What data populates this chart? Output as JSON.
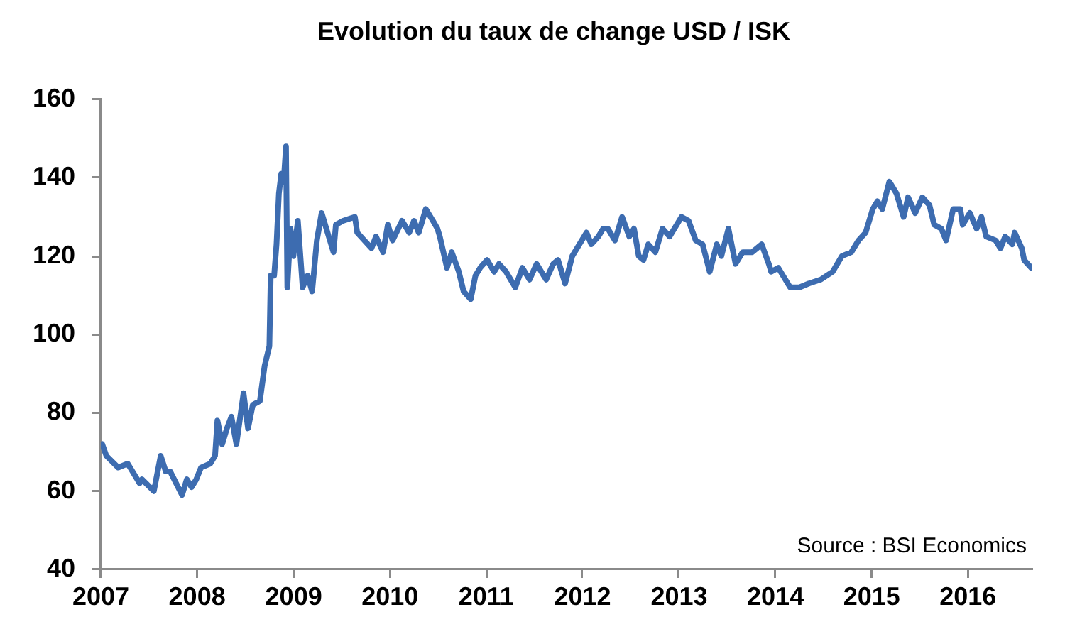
{
  "chart_data": {
    "type": "line",
    "title": "Evolution du taux de change USD / ISK",
    "annotations": [
      "Source : BSI Economics"
    ],
    "x": [
      "2007-01-06",
      "2007-01-22",
      "2007-03-08",
      "2007-04-13",
      "2007-05-28",
      "2007-06-06",
      "2007-07-21",
      "2007-08-16",
      "2007-09-04",
      "2007-09-21",
      "2007-11-05",
      "2007-11-23",
      "2007-12-11",
      "2007-12-29",
      "2008-01-16",
      "2008-02-20",
      "2008-03-09",
      "2008-03-18",
      "2008-04-05",
      "2008-04-23",
      "2008-05-10",
      "2008-05-29",
      "2008-06-25",
      "2008-07-12",
      "2008-07-30",
      "2008-08-26",
      "2008-09-13",
      "2008-10-01",
      "2008-10-06",
      "2008-10-19",
      "2008-10-28",
      "2008-11-06",
      "2008-11-15",
      "2008-11-24",
      "2008-12-03",
      "2008-12-08",
      "2008-12-20",
      "2008-12-31",
      "2009-01-17",
      "2009-02-04",
      "2009-02-23",
      "2009-03-12",
      "2009-03-30",
      "2009-04-17",
      "2009-05-05",
      "2009-06-01",
      "2009-06-10",
      "2009-07-07",
      "2009-08-21",
      "2009-08-30",
      "2009-09-26",
      "2009-10-23",
      "2009-11-09",
      "2009-12-06",
      "2009-12-24",
      "2010-01-11",
      "2010-02-16",
      "2010-03-15",
      "2010-04-02",
      "2010-04-20",
      "2010-05-17",
      "2010-06-13",
      "2010-06-30",
      "2010-07-09",
      "2010-08-05",
      "2010-08-23",
      "2010-09-19",
      "2010-10-07",
      "2010-11-03",
      "2010-11-21",
      "2010-12-09",
      "2011-01-04",
      "2011-01-31",
      "2011-02-18",
      "2011-03-17",
      "2011-04-21",
      "2011-05-18",
      "2011-06-14",
      "2011-07-11",
      "2011-08-16",
      "2011-09-12",
      "2011-09-30",
      "2011-10-27",
      "2011-11-23",
      "2011-12-20",
      "2012-01-16",
      "2012-02-03",
      "2012-03-01",
      "2012-03-19",
      "2012-04-06",
      "2012-05-03",
      "2012-05-30",
      "2012-06-26",
      "2012-07-14",
      "2012-08-01",
      "2012-08-19",
      "2012-09-06",
      "2012-10-03",
      "2012-10-30",
      "2012-11-26",
      "2013-01-10",
      "2013-02-06",
      "2013-03-05",
      "2013-03-31",
      "2013-04-27",
      "2013-05-24",
      "2013-06-10",
      "2013-07-07",
      "2013-08-03",
      "2013-08-30",
      "2013-10-05",
      "2013-11-10",
      "2013-12-07",
      "2013-12-16",
      "2014-01-12",
      "2014-02-26",
      "2014-04-02",
      "2014-05-08",
      "2014-06-22",
      "2014-08-06",
      "2014-09-10",
      "2014-10-16",
      "2014-11-12",
      "2014-12-09",
      "2015-01-05",
      "2015-01-23",
      "2015-02-10",
      "2015-03-09",
      "2015-04-05",
      "2015-05-02",
      "2015-05-19",
      "2015-06-15",
      "2015-07-12",
      "2015-08-08",
      "2015-08-26",
      "2015-09-22",
      "2015-10-10",
      "2015-11-06",
      "2015-12-03",
      "2015-12-12",
      "2016-01-08",
      "2016-02-03",
      "2016-02-21",
      "2016-03-10",
      "2016-04-15",
      "2016-05-03",
      "2016-05-21",
      "2016-06-17",
      "2016-06-26",
      "2016-07-23",
      "2016-08-01",
      "2016-08-28"
    ],
    "series": [
      {
        "color": "#3d6cb0",
        "values": [
          72,
          69,
          66,
          67,
          62,
          63,
          60,
          69,
          65,
          65,
          59,
          63,
          61,
          63,
          66,
          67,
          69,
          78,
          72,
          76,
          79,
          72,
          85,
          76,
          82,
          83,
          92,
          97,
          115,
          115,
          123,
          136,
          141,
          139,
          148,
          112,
          127,
          120,
          129,
          112,
          115,
          111,
          124,
          131,
          127,
          121,
          128,
          129,
          130,
          126,
          124,
          122,
          125,
          121,
          128,
          124,
          129,
          126,
          129,
          126,
          132,
          129,
          127,
          125,
          117,
          121,
          116,
          111,
          109,
          115,
          117,
          119,
          116,
          118,
          116,
          112,
          117,
          114,
          118,
          114,
          118,
          119,
          113,
          120,
          123,
          126,
          123,
          125,
          127,
          127,
          124,
          130,
          125,
          127,
          120,
          119,
          123,
          121,
          127,
          125,
          130,
          129,
          124,
          123,
          116,
          123,
          120,
          127,
          118,
          121,
          121,
          123,
          118,
          116,
          117,
          112,
          112,
          113,
          114,
          116,
          120,
          121,
          124,
          126,
          132,
          134,
          132,
          139,
          136,
          130,
          135,
          131,
          135,
          133,
          128,
          127,
          124,
          132,
          132,
          128,
          131,
          127,
          130,
          125,
          124,
          122,
          125,
          123,
          126,
          122,
          119,
          117
        ]
      }
    ],
    "xlim": [
      "2007-01-01",
      "2016-09-01"
    ],
    "xticks": [
      "2007",
      "2008",
      "2009",
      "2010",
      "2011",
      "2012",
      "2013",
      "2014",
      "2015",
      "2016"
    ],
    "ylim": [
      40,
      160
    ],
    "yticks": [
      40,
      60,
      80,
      100,
      120,
      140,
      160
    ]
  }
}
